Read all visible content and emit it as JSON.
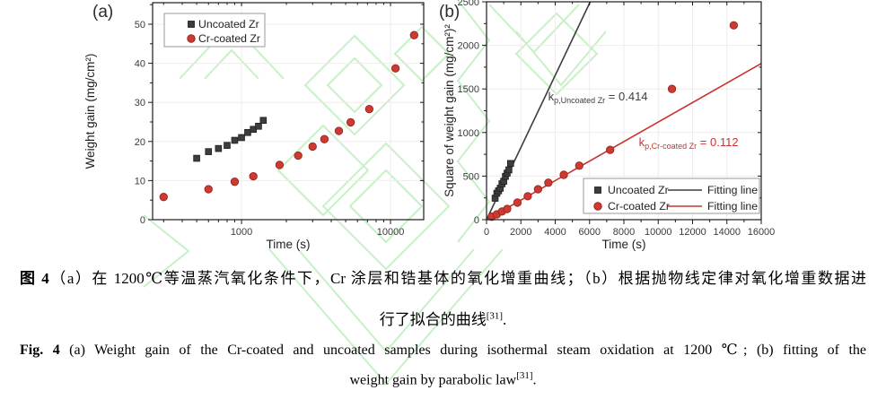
{
  "page": {
    "background": "#ffffff"
  },
  "watermark": {
    "color": "#9ae49a"
  },
  "captions": {
    "cn_prefix": "图 4",
    "cn_line1": "（a）在 1200℃等温蒸汽氧化条件下，Cr 涂层和锆基体的氧化增重曲线；（b）根据抛物线定律对氧化增重数据进",
    "cn_line2": "行了拟合的曲线",
    "cn_ref": "[31]",
    "cn_end": ".",
    "en_prefix": "Fig. 4",
    "en_line1": " (a) Weight gain of the Cr-coated and uncoated samples during isothermal steam oxidation at 1200 ℃; (b) fitting of the",
    "en_line2": "weight gain by parabolic law",
    "en_ref": "[31]",
    "en_end": "."
  },
  "chart_data": [
    {
      "panel_label": "(a)",
      "type": "scatter",
      "title": "",
      "xlabel": "Time (s)",
      "ylabel": "Weight gain (mg/cm²)",
      "xscale": "log",
      "yscale": "linear",
      "xlim": [
        253,
        16700
      ],
      "ylim": [
        0,
        55.5
      ],
      "xticks": [
        1000,
        10000
      ],
      "xtick_labels": [
        "1000",
        "10000"
      ],
      "xminor": [
        300,
        400,
        500,
        600,
        700,
        800,
        900,
        2000,
        3000,
        4000,
        5000,
        6000,
        7000,
        8000,
        9000
      ],
      "yticks": [
        0,
        10,
        20,
        30,
        40,
        50
      ],
      "yminor": [
        5,
        15,
        25,
        35,
        45,
        55
      ],
      "grid": true,
      "legend_position": "top-left",
      "series": [
        {
          "name": "Uncoated Zr",
          "marker": "square",
          "color": "#3d3d3d",
          "edge": "#1f1f1f",
          "points": [
            [
              500,
              15.7
            ],
            [
              600,
              17.4
            ],
            [
              700,
              18.2
            ],
            [
              800,
              19.0
            ],
            [
              900,
              20.3
            ],
            [
              1000,
              21.0
            ],
            [
              1100,
              22.3
            ],
            [
              1200,
              23.1
            ],
            [
              1300,
              23.9
            ],
            [
              1400,
              25.4
            ]
          ]
        },
        {
          "name": "Cr-coated Zr",
          "marker": "circle",
          "color": "#cd3a32",
          "edge": "#9c231d",
          "points": [
            [
              300,
              5.8
            ],
            [
              600,
              7.8
            ],
            [
              900,
              9.7
            ],
            [
              1200,
              11.1
            ],
            [
              1800,
              14.0
            ],
            [
              2400,
              16.4
            ],
            [
              3000,
              18.7
            ],
            [
              3600,
              20.6
            ],
            [
              4500,
              22.7
            ],
            [
              5400,
              24.9
            ],
            [
              7200,
              28.3
            ],
            [
              10800,
              38.7
            ],
            [
              14400,
              47.2
            ]
          ]
        }
      ]
    },
    {
      "panel_label": "(b)",
      "type": "scatter",
      "title": "",
      "xlabel": "Time (s)",
      "ylabel": "Square of weight gain (mg/cm²)²",
      "xscale": "linear",
      "yscale": "linear",
      "xlim": [
        0,
        16000
      ],
      "ylim": [
        0,
        2500
      ],
      "xticks": [
        0,
        2000,
        4000,
        6000,
        8000,
        10000,
        12000,
        14000,
        16000
      ],
      "xminor": [
        1000,
        3000,
        5000,
        7000,
        9000,
        11000,
        13000,
        15000
      ],
      "yticks": [
        0,
        500,
        1000,
        1500,
        2000,
        2500
      ],
      "yminor": [
        250,
        750,
        1250,
        1750,
        2250
      ],
      "grid": true,
      "legend_position": "bottom-right",
      "series": [
        {
          "name": "Uncoated Zr",
          "marker": "square",
          "color": "#3d3d3d",
          "edge": "#1f1f1f",
          "points": [
            [
              500,
              246
            ],
            [
              600,
              303
            ],
            [
              700,
              331
            ],
            [
              800,
              361
            ],
            [
              900,
              412
            ],
            [
              1000,
              441
            ],
            [
              1100,
              497
            ],
            [
              1200,
              534
            ],
            [
              1300,
              571
            ],
            [
              1400,
              645
            ]
          ]
        },
        {
          "name": "Cr-coated Zr",
          "marker": "circle",
          "color": "#cd3a32",
          "edge": "#9c231d",
          "points": [
            [
              300,
              34
            ],
            [
              600,
              61
            ],
            [
              900,
              94
            ],
            [
              1200,
              123
            ],
            [
              1800,
              196
            ],
            [
              2400,
              269
            ],
            [
              3000,
              350
            ],
            [
              3600,
              424
            ],
            [
              4500,
              515
            ],
            [
              5400,
              620
            ],
            [
              7200,
              801
            ],
            [
              10800,
              1500
            ],
            [
              14400,
              2230
            ]
          ]
        }
      ],
      "fits": [
        {
          "name": "Fitting line",
          "color": "#3d3d3d",
          "slope": 0.414,
          "line": [
            [
              0,
              0
            ],
            [
              6040,
              2500
            ]
          ],
          "annotation": {
            "k": "k",
            "sub": "p,Uncoated Zr",
            "rest": " = 0.414",
            "x": 3590,
            "y": 1368
          }
        },
        {
          "name": "Fitting line",
          "color": "#c9332e",
          "slope": 0.112,
          "line": [
            [
              0,
              0
            ],
            [
              16000,
              1792
            ]
          ],
          "annotation": {
            "k": "k",
            "sub": "p,Cr-coated Zr",
            "rest": " = 0.112",
            "x": 8871,
            "y": 844
          }
        }
      ]
    }
  ]
}
